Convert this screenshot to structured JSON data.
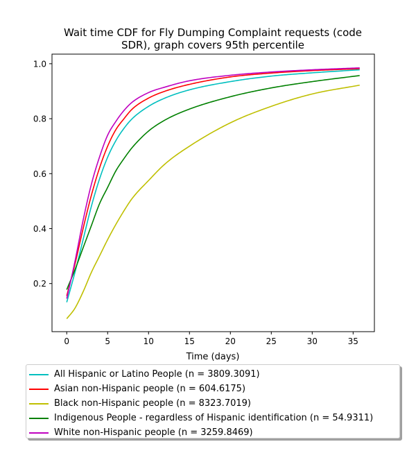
{
  "chart_data": {
    "type": "line",
    "title": "Wait time CDF for Fly Dumping Complaint  requests (code SDR), graph covers 95th percentile",
    "title_lines": [
      "Wait time CDF for Fly Dumping Complaint  requests (code",
      "SDR), graph covers 95th percentile"
    ],
    "xlabel": "Time (days)",
    "ylabel": "",
    "xlim": [
      -1.8,
      37.6
    ],
    "ylim": [
      0.025,
      1.035
    ],
    "xticks": [
      0,
      5,
      10,
      15,
      20,
      25,
      30,
      35
    ],
    "yticks": [
      0.2,
      0.4,
      0.6,
      0.8,
      1.0
    ],
    "ytick_labels": [
      "0.2",
      "0.4",
      "0.6",
      "0.8",
      "1.0"
    ],
    "grid": false,
    "legend_position": "below-plot",
    "series": [
      {
        "name": "All Hispanic or Latino People (n = 3809.3091)",
        "color": "#00bfbf",
        "x": [
          0,
          1,
          2,
          3,
          4,
          5,
          6,
          7,
          8,
          10,
          12,
          15,
          20,
          25,
          30,
          35.8
        ],
        "y": [
          0.132,
          0.24,
          0.36,
          0.48,
          0.58,
          0.66,
          0.72,
          0.765,
          0.8,
          0.845,
          0.875,
          0.905,
          0.935,
          0.955,
          0.967,
          0.978
        ]
      },
      {
        "name": "Asian non-Hispanic people (n = 604.6175)",
        "color": "#ff0000",
        "x": [
          0,
          1,
          2,
          3,
          4,
          5,
          6,
          7,
          8,
          10,
          12,
          15,
          20,
          25,
          30,
          35.8
        ],
        "y": [
          0.155,
          0.27,
          0.4,
          0.52,
          0.62,
          0.7,
          0.76,
          0.8,
          0.835,
          0.875,
          0.9,
          0.925,
          0.952,
          0.966,
          0.975,
          0.982
        ]
      },
      {
        "name": "Black non-Hispanic people (n = 8323.7019)",
        "color": "#bfbf00",
        "x": [
          0,
          1,
          2,
          3,
          4,
          5,
          6,
          7,
          8,
          10,
          12,
          15,
          20,
          25,
          30,
          35.8
        ],
        "y": [
          0.072,
          0.11,
          0.17,
          0.24,
          0.3,
          0.36,
          0.415,
          0.465,
          0.51,
          0.575,
          0.635,
          0.7,
          0.785,
          0.845,
          0.89,
          0.922
        ]
      },
      {
        "name": "Indigenous People - regardless of Hispanic identification (n = 54.9311)",
        "color": "#008000",
        "x": [
          0,
          1,
          2,
          3,
          4,
          5,
          6,
          7,
          8,
          10,
          12,
          15,
          20,
          25,
          30,
          35.8
        ],
        "y": [
          0.178,
          0.25,
          0.33,
          0.41,
          0.49,
          0.55,
          0.61,
          0.655,
          0.695,
          0.755,
          0.795,
          0.835,
          0.88,
          0.912,
          0.935,
          0.957
        ]
      },
      {
        "name": "White non-Hispanic people (n = 3259.8469)",
        "color": "#bf00bf",
        "x": [
          0,
          1,
          2,
          3,
          4,
          5,
          6,
          7,
          8,
          10,
          12,
          15,
          20,
          25,
          30,
          35.8
        ],
        "y": [
          0.145,
          0.28,
          0.43,
          0.56,
          0.66,
          0.74,
          0.79,
          0.83,
          0.86,
          0.895,
          0.915,
          0.938,
          0.958,
          0.97,
          0.978,
          0.985
        ]
      }
    ]
  }
}
